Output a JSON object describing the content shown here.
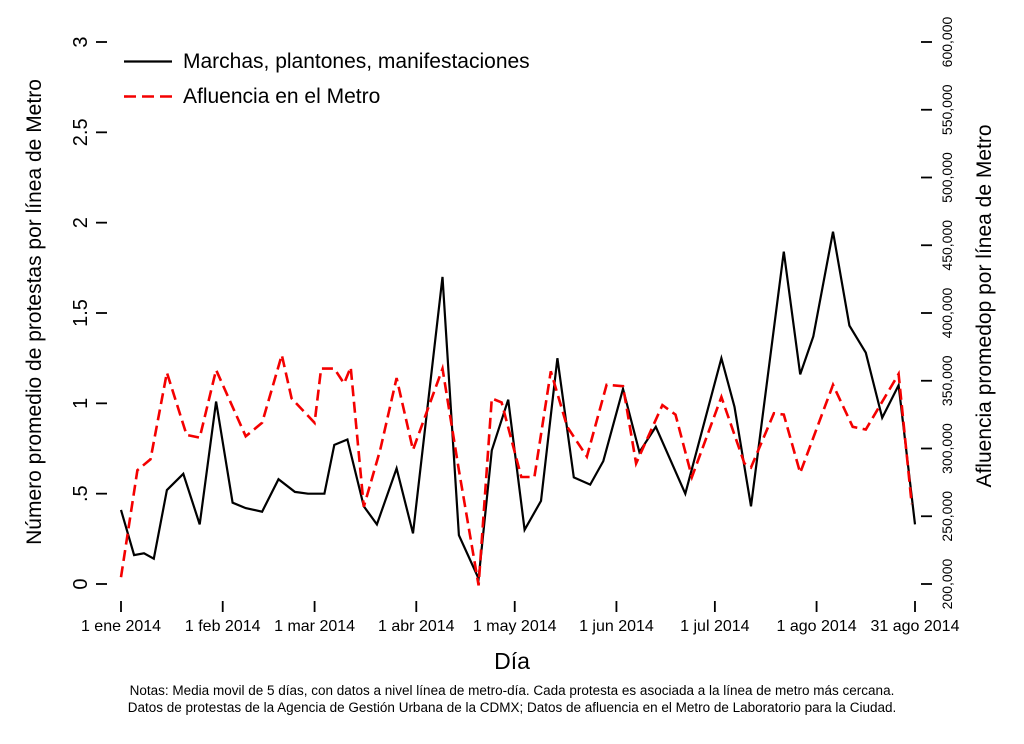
{
  "figure": {
    "notes": {
      "line1": "Notas: Media movil de 5 días, con datos a nivel línea de metro-día. Cada protesta es asociada a la línea de metro más cercana.",
      "line2": "Datos de protestas de la Agencia de Gestión Urbana de la CDMX; Datos de afluencia en el Metro de Laboratorio para la Ciudad."
    }
  },
  "chart_data": {
    "type": "line",
    "title": "",
    "grid": false,
    "legend_position": "top-left-inside",
    "x_axis": {
      "title": "Día",
      "unit": "day index from 1 ene 2014",
      "range_days": [
        0,
        242
      ],
      "ticks": [
        {
          "day": 0,
          "label": "1 ene 2014"
        },
        {
          "day": 31,
          "label": "1 feb 2014"
        },
        {
          "day": 59,
          "label": "1 mar 2014"
        },
        {
          "day": 90,
          "label": "1 abr 2014"
        },
        {
          "day": 120,
          "label": "1 may 2014"
        },
        {
          "day": 151,
          "label": "1 jun 2014"
        },
        {
          "day": 181,
          "label": "1 jul 2014"
        },
        {
          "day": 212,
          "label": "1 ago 2014"
        },
        {
          "day": 242,
          "label": "31 ago 2014"
        }
      ]
    },
    "y_axis_left": {
      "title": "Número promedio de protestas por línea de Metro",
      "range": [
        0,
        3
      ],
      "ticks": [
        {
          "v": 0,
          "label": "0"
        },
        {
          "v": 0.5,
          "label": ".5"
        },
        {
          "v": 1,
          "label": "1"
        },
        {
          "v": 1.5,
          "label": "1.5"
        },
        {
          "v": 2,
          "label": "2"
        },
        {
          "v": 2.5,
          "label": "2.5"
        },
        {
          "v": 3,
          "label": "3"
        }
      ]
    },
    "y_axis_right": {
      "title": "Afluencia promedop por línea de Metro",
      "range": [
        200000,
        600000
      ],
      "ticks": [
        {
          "v": 200000,
          "label": "200,000"
        },
        {
          "v": 250000,
          "label": "250,000"
        },
        {
          "v": 300000,
          "label": "300,000"
        },
        {
          "v": 350000,
          "label": "350,000"
        },
        {
          "v": 400000,
          "label": "400,000"
        },
        {
          "v": 450000,
          "label": "450,000"
        },
        {
          "v": 500000,
          "label": "500,000"
        },
        {
          "v": 550000,
          "label": "550,000"
        },
        {
          "v": 600000,
          "label": "600,000"
        }
      ]
    },
    "series": [
      {
        "name": "Marchas, plantones, manifestaciones",
        "axis": "left",
        "color": "#000000",
        "style": "solid",
        "points": [
          [
            0,
            0.41
          ],
          [
            4,
            0.16
          ],
          [
            7,
            0.17
          ],
          [
            10,
            0.14
          ],
          [
            14,
            0.52
          ],
          [
            19,
            0.61
          ],
          [
            24,
            0.33
          ],
          [
            29,
            1.01
          ],
          [
            34,
            0.45
          ],
          [
            38,
            0.42
          ],
          [
            43,
            0.4
          ],
          [
            48,
            0.58
          ],
          [
            53,
            0.51
          ],
          [
            57,
            0.5
          ],
          [
            62,
            0.5
          ],
          [
            65,
            0.77
          ],
          [
            69,
            0.8
          ],
          [
            74,
            0.43
          ],
          [
            78,
            0.33
          ],
          [
            84,
            0.64
          ],
          [
            89,
            0.28
          ],
          [
            98,
            1.7
          ],
          [
            103,
            0.27
          ],
          [
            109,
            0.03
          ],
          [
            113,
            0.74
          ],
          [
            118,
            1.02
          ],
          [
            123,
            0.3
          ],
          [
            128,
            0.46
          ],
          [
            133,
            1.25
          ],
          [
            138,
            0.59
          ],
          [
            143,
            0.55
          ],
          [
            147,
            0.68
          ],
          [
            153,
            1.08
          ],
          [
            158,
            0.73
          ],
          [
            163,
            0.87
          ],
          [
            172,
            0.5
          ],
          [
            183,
            1.25
          ],
          [
            187,
            0.98
          ],
          [
            192,
            0.43
          ],
          [
            202,
            1.84
          ],
          [
            207,
            1.16
          ],
          [
            211,
            1.37
          ],
          [
            217,
            1.95
          ],
          [
            222,
            1.43
          ],
          [
            227,
            1.28
          ],
          [
            232,
            0.92
          ],
          [
            237,
            1.1
          ],
          [
            242,
            0.33
          ]
        ]
      },
      {
        "name": "Afluencia en el Metro",
        "axis": "right",
        "color": "#f40000",
        "style": "dashed",
        "points": [
          [
            0,
            205000
          ],
          [
            5,
            284000
          ],
          [
            9,
            292000
          ],
          [
            14,
            356000
          ],
          [
            20,
            310000
          ],
          [
            24,
            308000
          ],
          [
            29,
            358000
          ],
          [
            38,
            309000
          ],
          [
            43,
            319000
          ],
          [
            49,
            369000
          ],
          [
            52,
            337000
          ],
          [
            59,
            319000
          ],
          [
            61,
            359000
          ],
          [
            65,
            359000
          ],
          [
            68,
            348000
          ],
          [
            70,
            360000
          ],
          [
            74,
            257000
          ],
          [
            79,
            299000
          ],
          [
            84,
            352000
          ],
          [
            89,
            299000
          ],
          [
            98,
            359000
          ],
          [
            103,
            284000
          ],
          [
            109,
            199000
          ],
          [
            113,
            337000
          ],
          [
            116,
            334000
          ],
          [
            122,
            279000
          ],
          [
            126,
            279000
          ],
          [
            131,
            357000
          ],
          [
            136,
            316000
          ],
          [
            142,
            294000
          ],
          [
            148,
            347000
          ],
          [
            153,
            346000
          ],
          [
            157,
            289000
          ],
          [
            165,
            332000
          ],
          [
            169,
            325000
          ],
          [
            174,
            279000
          ],
          [
            183,
            338000
          ],
          [
            190,
            289000
          ],
          [
            192,
            286000
          ],
          [
            199,
            326000
          ],
          [
            202,
            325000
          ],
          [
            207,
            282000
          ],
          [
            217,
            347000
          ],
          [
            223,
            316000
          ],
          [
            227,
            314000
          ],
          [
            237,
            355000
          ],
          [
            241,
            259000
          ]
        ]
      }
    ]
  }
}
